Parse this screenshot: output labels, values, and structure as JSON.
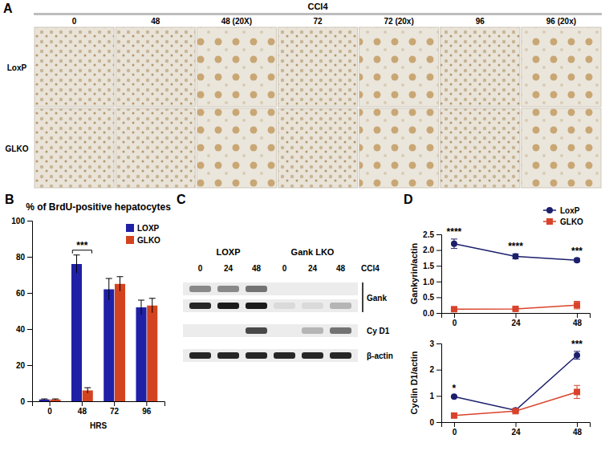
{
  "chart_data": [
    {
      "type": "bar",
      "title": "% of BrdU-positive hepatocytes",
      "x_label": "HRS",
      "categories": [
        "0",
        "48",
        "72",
        "96"
      ],
      "series": [
        {
          "name": "LOXP",
          "color": "#1f20a6",
          "values": [
            1,
            76,
            62,
            52
          ],
          "errors": [
            0.3,
            5,
            6,
            4
          ]
        },
        {
          "name": "GLKO",
          "color": "#d4431f",
          "values": [
            1,
            6,
            65,
            53
          ],
          "errors": [
            0.3,
            1.5,
            4,
            4
          ]
        }
      ],
      "ylim": [
        0,
        100
      ],
      "yticks": [
        0,
        20,
        40,
        60,
        80,
        100
      ],
      "grid": false,
      "legend": "top-right",
      "annotations": [
        {
          "text": "***",
          "x": "48"
        }
      ]
    },
    {
      "type": "line",
      "y_label": "Gankyrin/actin",
      "x": [
        0,
        24,
        48
      ],
      "xlim": [
        -5,
        53
      ],
      "xticks": [
        0,
        24,
        48
      ],
      "ylim": [
        0,
        2.5
      ],
      "yticks": [
        {
          "value": 0,
          "label": "0.0"
        },
        0.5,
        {
          "value": 1,
          "label": "1.0"
        },
        1.5,
        {
          "value": 2,
          "label": "2.0"
        },
        2.5
      ],
      "grid": false,
      "legend": "top-right",
      "series": [
        {
          "name": "LoxP",
          "color": "#1c1f6b",
          "marker": "circle",
          "values": [
            2.2,
            1.8,
            1.68
          ],
          "errors": [
            0.15,
            0.08,
            0.05
          ]
        },
        {
          "name": "GLKO",
          "color": "#d9432b",
          "marker": "square",
          "values": [
            0.12,
            0.13,
            0.25
          ],
          "errors": [
            0.02,
            0.03,
            0.12
          ]
        }
      ],
      "annotations": [
        {
          "text": "****",
          "x": 0
        },
        {
          "text": "****",
          "x": 24
        },
        {
          "text": "***",
          "x": 48
        }
      ]
    },
    {
      "type": "line",
      "y_label": "Cyclin D1/actin",
      "x": [
        0,
        24,
        48
      ],
      "xlim": [
        -5,
        53
      ],
      "xticks": [
        0,
        24,
        48
      ],
      "ylim": [
        0,
        3
      ],
      "yticks": [
        0,
        1,
        2,
        3
      ],
      "grid": false,
      "series": [
        {
          "name": "LoxP",
          "color": "#1c1f6b",
          "marker": "circle",
          "values": [
            0.97,
            0.45,
            2.55
          ],
          "errors": [
            0.03,
            0.05,
            0.15
          ]
        },
        {
          "name": "GLKO",
          "color": "#d9432b",
          "marker": "square",
          "values": [
            0.25,
            0.42,
            1.15
          ],
          "errors": [
            0.03,
            0.05,
            0.25
          ]
        }
      ],
      "annotations": [
        {
          "text": "*",
          "x": 0
        },
        {
          "text": "***",
          "x": 48
        }
      ]
    }
  ],
  "figure": {
    "panel_labels": [
      "A",
      "B",
      "C",
      "D"
    ],
    "panel_a": {
      "title": "CCl4",
      "columns": [
        "0",
        "48",
        "48 (20X)",
        "72",
        "72 (20x)",
        "96",
        "96 (20x)"
      ],
      "rows": [
        "LoxP",
        "GLKO"
      ]
    },
    "panel_c": {
      "treatment": "CCl4",
      "groups": [
        {
          "label": "LOXP",
          "lanes": [
            "0",
            "24",
            "48"
          ]
        },
        {
          "label": "Gank LKO",
          "lanes": [
            "0",
            "24",
            "48"
          ]
        }
      ],
      "rows": [
        {
          "label": "Gank",
          "bands": [
            [
              0.45,
              0.45,
              0.55,
              0,
              0,
              0
            ],
            [
              0.9,
              0.95,
              0.95,
              0.08,
              0.08,
              0.25
            ]
          ]
        },
        {
          "label": "Cy D1",
          "bands": [
            [
              0,
              0,
              0.75,
              0,
              0.25,
              0.55
            ]
          ]
        },
        {
          "label": "β-actin",
          "bands": [
            [
              0.9,
              0.9,
              0.9,
              0.9,
              0.9,
              0.9
            ]
          ]
        }
      ]
    }
  }
}
